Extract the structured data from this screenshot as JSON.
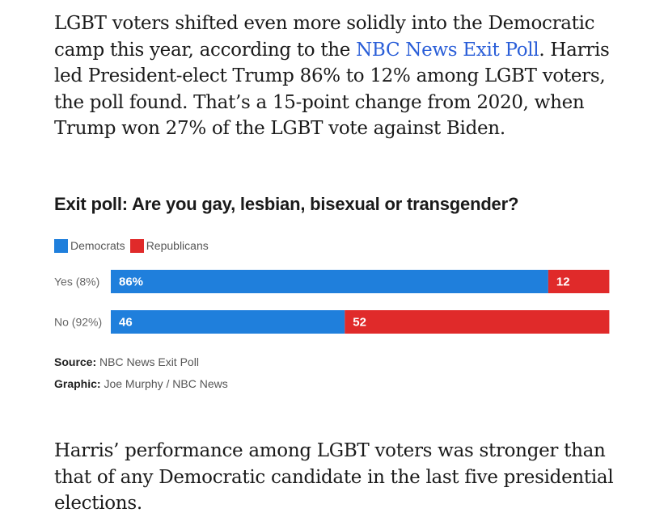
{
  "article": {
    "para1_before_link": "LGBT voters shifted even more solidly into the Democratic camp this year, according to the ",
    "para1_link": "NBC News Exit Poll",
    "para1_after_link": ". Harris led President-elect Trump 86% to 12% among LGBT voters, the poll found. That’s a 15-point change from 2020, when Trump won 27% of the LGBT vote against Biden.",
    "para2": "Harris’ performance among LGBT voters was stronger than that of any Democratic candidate in the last five presidential elections.",
    "link_color": "#2a5ed8"
  },
  "chart_data": {
    "type": "bar",
    "orientation": "horizontal",
    "stacked": true,
    "title": "Exit poll: Are you gay, lesbian, bisexual or transgender?",
    "categories": [
      "Yes (8%)",
      "No (92%)"
    ],
    "series": [
      {
        "name": "Democrats",
        "color": "#1f7fdc",
        "values": [
          86,
          46
        ],
        "labels": [
          "86%",
          "46"
        ]
      },
      {
        "name": "Republicans",
        "color": "#e02a2a",
        "values": [
          12,
          52
        ],
        "labels": [
          "12",
          "52"
        ]
      }
    ],
    "xlim": [
      0,
      100
    ],
    "legend_position": "top-left",
    "grid": false,
    "source_label": "Source:",
    "source": "NBC News Exit Poll",
    "graphic_label": "Graphic:",
    "graphic": "Joe Murphy / NBC News"
  }
}
